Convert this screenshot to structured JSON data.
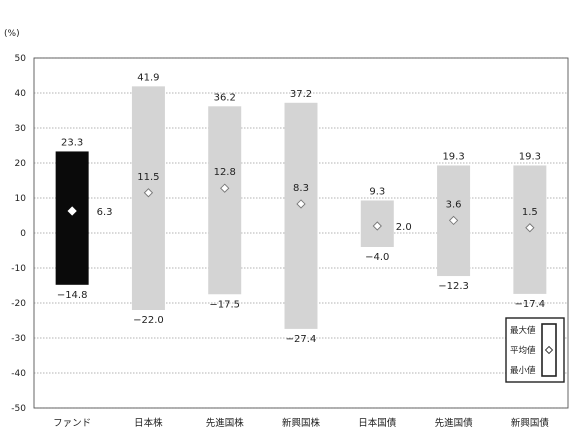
{
  "chart_data": {
    "type": "range-bar",
    "unit_label": "(%)",
    "ylim": [
      -50,
      50
    ],
    "yticks": [
      50,
      40,
      30,
      20,
      10,
      0,
      -10,
      -20,
      -30,
      -40,
      -50
    ],
    "categories": [
      "ファンド",
      "日本株",
      "先進国株",
      "新興国株",
      "日本国債",
      "先進国債",
      "新興国債"
    ],
    "max": [
      23.3,
      41.9,
      36.2,
      37.2,
      9.3,
      19.3,
      19.3
    ],
    "mean": [
      6.3,
      11.5,
      12.8,
      8.3,
      2.0,
      3.6,
      1.5
    ],
    "min": [
      -14.8,
      -22.0,
      -17.5,
      -27.4,
      -4.0,
      -12.3,
      -17.4
    ],
    "max_labels": [
      "23.3",
      "41.9",
      "36.2",
      "37.2",
      "9.3",
      "19.3",
      "19.3"
    ],
    "mean_labels": [
      "6.3",
      "11.5",
      "12.8",
      "8.3",
      "2.0",
      "3.6",
      "1.5"
    ],
    "min_labels": [
      "−14.8",
      "−22.0",
      "−17.5",
      "−27.4",
      "−4.0",
      "−12.3",
      "−17.4"
    ],
    "highlight_index": 0,
    "colors": {
      "highlight": "#0a0a0a",
      "other": "#d4d4d4",
      "marker_fill": "#ffffff",
      "grid": "#9a9a9a"
    },
    "legend": {
      "labels": [
        "最大値",
        "平均値",
        "最小値"
      ],
      "placement": "bottom-right"
    },
    "grid": true
  }
}
